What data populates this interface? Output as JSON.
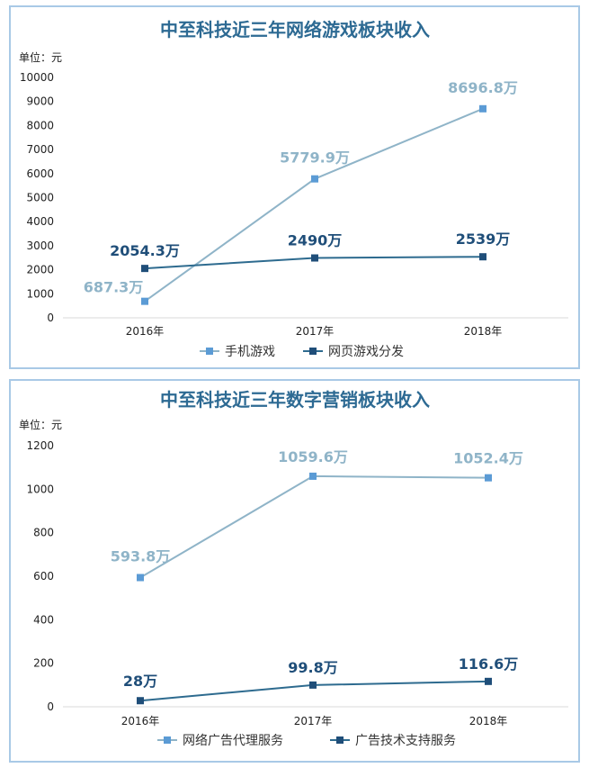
{
  "chart_data": [
    {
      "type": "line",
      "title": "中至科技近三年网络游戏板块收入",
      "unit_label": "单位：元",
      "categories": [
        "2016年",
        "2017年",
        "2018年"
      ],
      "ylim": [
        0,
        10000
      ],
      "yticks": [
        0,
        1000,
        2000,
        3000,
        4000,
        5000,
        6000,
        7000,
        8000,
        9000,
        10000
      ],
      "grid": false,
      "legend_position": "bottom",
      "series": [
        {
          "name": "手机游戏",
          "values": [
            687.3,
            5779.9,
            8696.8
          ],
          "labels": [
            "687.3万",
            "5779.9万",
            "8696.8万"
          ],
          "color": "#8fb4c8",
          "marker_color": "#5b9bd5"
        },
        {
          "name": "网页游戏分发",
          "values": [
            2054.3,
            2490,
            2539
          ],
          "labels": [
            "2054.3万",
            "2490万",
            "2539万"
          ],
          "color": "#2e6b8f",
          "marker_color": "#1f4e79"
        }
      ]
    },
    {
      "type": "line",
      "title": "中至科技近三年数字营销板块收入",
      "unit_label": "单位：元",
      "categories": [
        "2016年",
        "2017年",
        "2018年"
      ],
      "ylim": [
        0,
        1200
      ],
      "yticks": [
        0,
        200,
        400,
        600,
        800,
        1000,
        1200
      ],
      "grid": false,
      "legend_position": "bottom",
      "series": [
        {
          "name": "网络广告代理服务",
          "values": [
            593.8,
            1059.6,
            1052.4
          ],
          "labels": [
            "593.8万",
            "1059.6万",
            "1052.4万"
          ],
          "color": "#8fb4c8",
          "marker_color": "#5b9bd5"
        },
        {
          "name": "广告技术支持服务",
          "values": [
            28,
            99.8,
            116.6
          ],
          "labels": [
            "28万",
            "99.8万",
            "116.6万"
          ],
          "color": "#2e6b8f",
          "marker_color": "#1f4e79"
        }
      ]
    }
  ]
}
